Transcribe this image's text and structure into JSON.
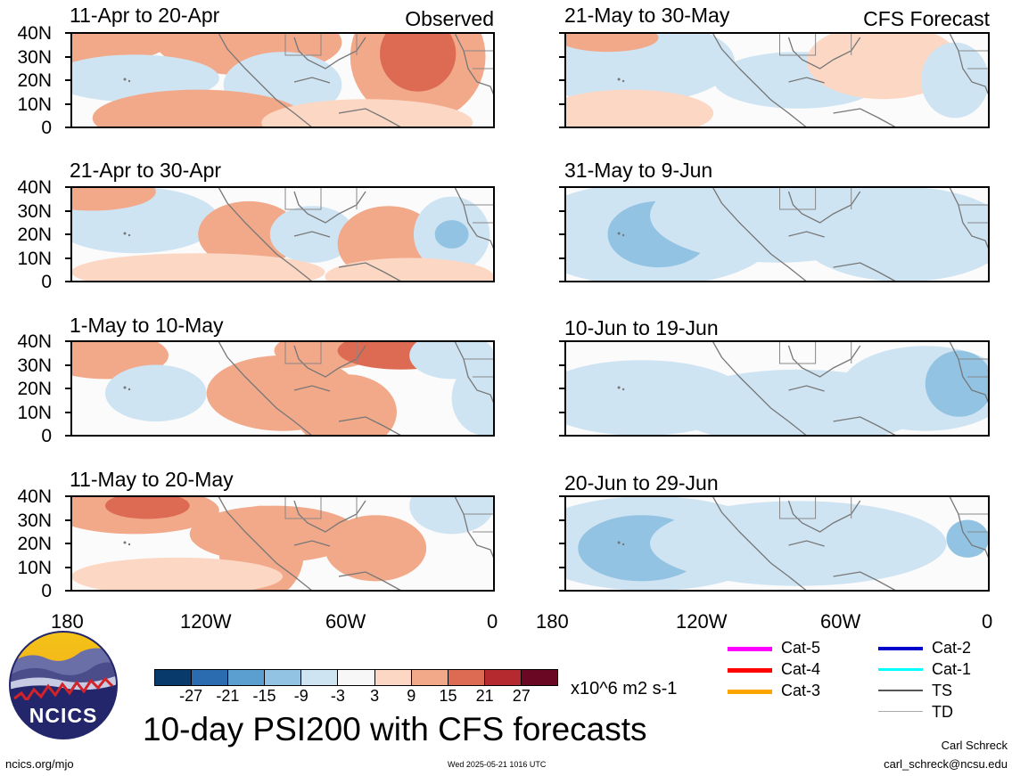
{
  "header": {
    "left_label": "Observed",
    "right_label": "CFS Forecast"
  },
  "panels_left": [
    {
      "title": "11-Apr to 20-Apr"
    },
    {
      "title": "21-Apr to 30-Apr"
    },
    {
      "title": "1-May to 10-May"
    },
    {
      "title": "11-May to 20-May"
    }
  ],
  "panels_right": [
    {
      "title": "21-May to 30-May"
    },
    {
      "title": "31-May to 9-Jun"
    },
    {
      "title": "10-Jun to 19-Jun"
    },
    {
      "title": "20-Jun to 29-Jun"
    }
  ],
  "y_ticks": [
    "40N",
    "30N",
    "20N",
    "10N",
    "0"
  ],
  "x_ticks": [
    "180",
    "120W",
    "60W",
    "0"
  ],
  "colorbar": {
    "colors": [
      "#083a6b",
      "#2b6cb0",
      "#5a9fd0",
      "#92c3e3",
      "#cfe4f3",
      "#f7f7f7",
      "#fcd7c4",
      "#f2a98a",
      "#dd6b53",
      "#b52a2f",
      "#6a0823"
    ],
    "labels": [
      "-27",
      "-21",
      "-15",
      "-9",
      "-3",
      "3",
      "9",
      "15",
      "21",
      "27"
    ],
    "units": "x10^6 m2 s-1"
  },
  "legend": {
    "cat5": {
      "label": "Cat-5",
      "color": "#ff00ff"
    },
    "cat4": {
      "label": "Cat-4",
      "color": "#ff0000"
    },
    "cat3": {
      "label": "Cat-3",
      "color": "#ffa500"
    },
    "cat2": {
      "label": "Cat-2",
      "color": "#0000cd"
    },
    "cat1": {
      "label": "Cat-1",
      "color": "#00ffff"
    },
    "ts": {
      "label": "TS",
      "color": "#555555"
    },
    "td": {
      "label": "TD",
      "color": "#aaaaaa"
    }
  },
  "logo": {
    "text": "NCICS"
  },
  "main_title": "10-day PSI200 with CFS forecasts",
  "footer": {
    "url": "ncics.org/mjo",
    "timestamp": "Wed 2025-05-21 1016 UTC",
    "author": "Carl Schreck",
    "email": "carl_schreck@ncsu.edu"
  }
}
